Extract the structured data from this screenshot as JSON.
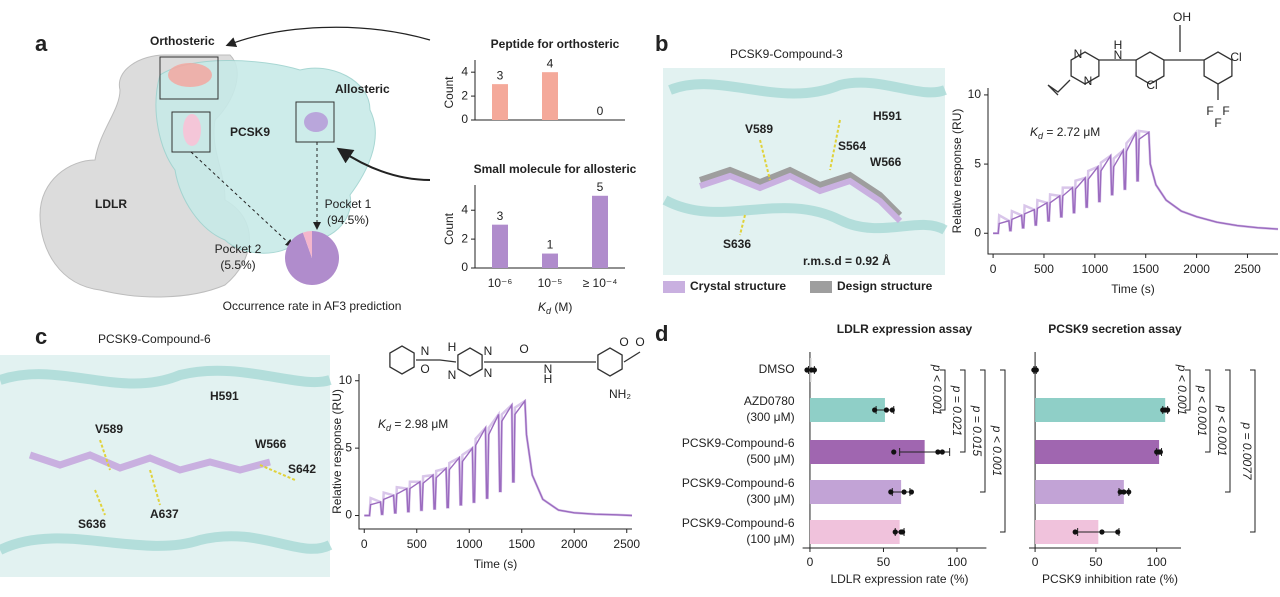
{
  "panels": [
    "a",
    "b",
    "c",
    "d"
  ],
  "figure_a": {
    "orthosteric": "Orthosteric",
    "allosteric": "Allosteric",
    "pcsk9": "PCSK9",
    "ldlr": "LDLR"
  },
  "figure_b": {
    "title": "PCSK9-Compound-3",
    "residues": [
      {
        "label": "V589",
        "color": "#2e8b3a"
      },
      {
        "label": "S564",
        "color": "#e8902a"
      },
      {
        "label": "H591",
        "color": "#8a86b8"
      },
      {
        "label": "W566",
        "color": "#a06bb8"
      },
      {
        "label": "S636",
        "color": "#e8902a"
      }
    ],
    "rmsd": "r.m.s.d = 0.92 Å",
    "legend": [
      {
        "label": "Crystal structure",
        "color": "#c4a8dc"
      },
      {
        "label": "Design structure",
        "color": "#9e9e9e"
      }
    ],
    "atoms": [
      "N",
      "H",
      "N",
      "N",
      "OH",
      "Cl",
      "Cl",
      "F",
      "F",
      "F"
    ]
  },
  "figure_c": {
    "title": "PCSK9-Compound-6",
    "residues": [
      {
        "label": "H591",
        "color": "#8a86b8"
      },
      {
        "label": "V589",
        "color": "#2e8b3a"
      },
      {
        "label": "W566",
        "color": "#a06bb8"
      },
      {
        "label": "S642",
        "color": "#e8902a"
      },
      {
        "label": "S636",
        "color": "#e8902a"
      },
      {
        "label": "A637",
        "color": "#888888"
      }
    ],
    "atoms": [
      "N",
      "O",
      "H",
      "N",
      "N",
      "N",
      "O",
      "N",
      "H",
      "O",
      "O",
      "NH₂"
    ]
  },
  "chart_data": [
    {
      "type": "bar",
      "title": "Peptide for orthosteric",
      "title_color": "#b5524a",
      "categories": [
        null,
        null,
        null
      ],
      "values": [
        3,
        4,
        0
      ],
      "color": "#f4a99a",
      "ylabel": "Count",
      "ylim": [
        0,
        4.6
      ],
      "yticks": [
        0,
        2,
        4
      ]
    },
    {
      "type": "bar",
      "title": "Small molecule for allosteric",
      "title_color": "#8e6bb3",
      "categories": [
        "10⁻⁶",
        "10⁻⁵",
        "≥ 10⁻⁴"
      ],
      "values": [
        3,
        1,
        5
      ],
      "color": "#b08ccc",
      "ylabel": "Count",
      "xlabel": [
        "K",
        "d",
        " (M)"
      ],
      "ylim": [
        0,
        5.4
      ],
      "yticks": [
        0,
        2,
        4
      ]
    },
    {
      "type": "pie",
      "title": "Occurrence rate in AF3 prediction",
      "categories": [
        "Pocket 1",
        "Pocket 2"
      ],
      "values": [
        94.5,
        5.5
      ],
      "value_labels": [
        "(94.5%)",
        "(5.5%)"
      ],
      "colors": [
        "#b08ccc",
        "#f4b6cc"
      ]
    },
    {
      "type": "line",
      "xlabel": "Time (s)",
      "ylabel": "Relative response (RU)",
      "annotation": [
        "K",
        "d",
        " = 2.72 μM"
      ],
      "x": [
        0,
        50,
        60,
        155,
        165,
        175,
        185,
        280,
        290,
        300,
        310,
        405,
        415,
        425,
        435,
        530,
        540,
        550,
        560,
        655,
        665,
        675,
        685,
        780,
        790,
        800,
        810,
        905,
        915,
        925,
        935,
        1030,
        1040,
        1050,
        1060,
        1155,
        1165,
        1175,
        1185,
        1280,
        1290,
        1300,
        1310,
        1405,
        1415,
        1425,
        1435,
        1530,
        1545,
        1600,
        1700,
        1850,
        2000,
        2200,
        2400,
        2600,
        2800
      ],
      "series": [
        {
          "color": "#d9c6ea",
          "values": [
            0,
            0,
            1.3,
            0.9,
            0.2,
            0.2,
            1.6,
            1.3,
            0.4,
            0.4,
            2.0,
            1.7,
            0.6,
            0.6,
            2.4,
            2.2,
            0.9,
            0.9,
            2.8,
            2.7,
            1.2,
            1.2,
            3.3,
            3.3,
            1.5,
            1.5,
            3.8,
            4.0,
            1.9,
            1.9,
            4.5,
            4.8,
            2.3,
            2.3,
            5.1,
            5.6,
            2.8,
            2.8,
            5.4,
            6.0,
            3.2,
            3.2,
            6.5,
            7.3,
            3.8,
            3.8,
            7.4,
            7.3,
            5.0,
            3.5,
            2.4,
            1.6,
            1.2,
            0.8,
            0.55,
            0.4,
            0.3
          ]
        },
        {
          "color": "#9b6bbf",
          "values": [
            0,
            0,
            0.7,
            0.9,
            0.2,
            0.2,
            1.0,
            1.3,
            0.4,
            0.4,
            1.4,
            1.7,
            0.6,
            0.6,
            1.8,
            2.2,
            0.9,
            0.9,
            2.2,
            2.7,
            1.2,
            1.2,
            2.7,
            3.3,
            1.5,
            1.5,
            3.2,
            4.0,
            1.9,
            1.9,
            3.9,
            4.8,
            2.3,
            2.3,
            4.5,
            5.6,
            2.8,
            2.8,
            4.8,
            6.0,
            3.2,
            3.2,
            5.9,
            7.3,
            3.8,
            3.8,
            6.8,
            7.3,
            5.0,
            3.5,
            2.4,
            1.6,
            1.2,
            0.8,
            0.55,
            0.4,
            0.3
          ]
        }
      ],
      "xlim": [
        -50,
        2800
      ],
      "ylim": [
        -1.5,
        10.5
      ],
      "xticks": [
        0,
        500,
        1000,
        1500,
        2000,
        2500
      ],
      "yticks": [
        0,
        5,
        10
      ]
    },
    {
      "type": "line",
      "xlabel": "Time (s)",
      "ylabel": "Relative response (RU)",
      "annotation": [
        "K",
        "d",
        " = 2.98 μM"
      ],
      "x": [
        0,
        50,
        60,
        155,
        165,
        175,
        185,
        280,
        290,
        300,
        310,
        405,
        415,
        425,
        435,
        530,
        540,
        550,
        560,
        655,
        665,
        675,
        685,
        780,
        790,
        800,
        810,
        905,
        915,
        925,
        935,
        1030,
        1040,
        1050,
        1060,
        1155,
        1165,
        1175,
        1185,
        1280,
        1290,
        1300,
        1310,
        1405,
        1415,
        1425,
        1435,
        1530,
        1545,
        1600,
        1700,
        1850,
        2000,
        2200,
        2400,
        2550
      ],
      "series": [
        {
          "color": "#d9c6ea",
          "values": [
            0,
            0,
            1.3,
            1.0,
            0.1,
            0.1,
            1.7,
            1.5,
            0.2,
            0.2,
            2.1,
            2.0,
            0.3,
            0.3,
            2.5,
            2.5,
            0.4,
            0.4,
            2.9,
            3.0,
            0.5,
            0.5,
            3.3,
            3.5,
            0.6,
            0.6,
            3.9,
            4.3,
            0.8,
            0.8,
            4.5,
            5.0,
            1.0,
            1.0,
            5.7,
            6.5,
            1.3,
            1.3,
            6.5,
            7.5,
            1.8,
            1.8,
            7.5,
            8.2,
            2.5,
            2.5,
            8.0,
            8.5,
            6.0,
            3.0,
            1.2,
            0.4,
            0.2,
            0.1,
            0.05,
            0
          ]
        },
        {
          "color": "#9b6bbf",
          "values": [
            0,
            0,
            0.8,
            1.0,
            0.1,
            0.1,
            1.2,
            1.5,
            0.2,
            0.2,
            1.6,
            2.0,
            0.3,
            0.3,
            2.0,
            2.5,
            0.4,
            0.4,
            2.4,
            3.0,
            0.5,
            0.5,
            2.8,
            3.5,
            0.6,
            0.6,
            3.4,
            4.3,
            0.8,
            0.8,
            4.0,
            5.0,
            1.0,
            1.0,
            5.2,
            6.5,
            1.3,
            1.3,
            6.0,
            7.5,
            1.8,
            1.8,
            7.0,
            8.2,
            2.5,
            2.5,
            7.5,
            8.5,
            6.0,
            3.0,
            1.2,
            0.4,
            0.2,
            0.1,
            0.05,
            0
          ]
        }
      ],
      "xlim": [
        -50,
        2550
      ],
      "ylim": [
        -1,
        10.5
      ],
      "xticks": [
        0,
        500,
        1000,
        1500,
        2000,
        2500
      ],
      "yticks": [
        0,
        5,
        10
      ]
    },
    {
      "type": "hbar",
      "title": "LDLR expression assay",
      "xlabel": "LDLR expression rate (%)",
      "categories": [
        [
          "DMSO"
        ],
        [
          "AZD0780",
          "(300 μM)"
        ],
        [
          "PCSK9-Compound-6",
          "(500 μM)"
        ],
        [
          "PCSK9-Compound-6",
          "(300 μM)"
        ],
        [
          "PCSK9-Compound-6",
          "(100 μM)"
        ]
      ],
      "values": [
        1,
        51,
        78,
        62,
        61
      ],
      "errors": [
        2,
        6,
        17,
        6,
        3
      ],
      "points": [
        [
          -2,
          1,
          3
        ],
        [
          44,
          52,
          56
        ],
        [
          57,
          87,
          90
        ],
        [
          55,
          64,
          69
        ],
        [
          58,
          62,
          63
        ]
      ],
      "colors": [
        "#cccccc",
        "#8fcfc7",
        "#a066b0",
        "#c2a3d6",
        "#f0c2dc"
      ],
      "p_values": [
        "p < 0.001",
        "p = 0.021",
        "p = 0.015",
        "p < 0.001"
      ],
      "xlim": [
        -5,
        120
      ],
      "xticks": [
        0,
        50,
        100
      ]
    },
    {
      "type": "hbar",
      "title": "PCSK9 secretion assay",
      "xlabel": "PCSK9 inhibition rate (%)",
      "categories": [
        null,
        null,
        null,
        null,
        null
      ],
      "values": [
        0,
        107,
        102,
        73,
        52
      ],
      "errors": [
        1,
        2,
        2,
        4,
        17
      ],
      "points": [
        [
          -1,
          0,
          1
        ],
        [
          105,
          107,
          109
        ],
        [
          100,
          102,
          103
        ],
        [
          70,
          73,
          77
        ],
        [
          33,
          55,
          68
        ]
      ],
      "colors": [
        "#cccccc",
        "#8fcfc7",
        "#a066b0",
        "#c2a3d6",
        "#f0c2dc"
      ],
      "p_values": [
        "p < 0.001",
        "p < 0.001",
        "p < 0.001",
        "p = 0.0077"
      ],
      "xlim": [
        -5,
        120
      ],
      "xticks": [
        0,
        50,
        100
      ]
    }
  ]
}
